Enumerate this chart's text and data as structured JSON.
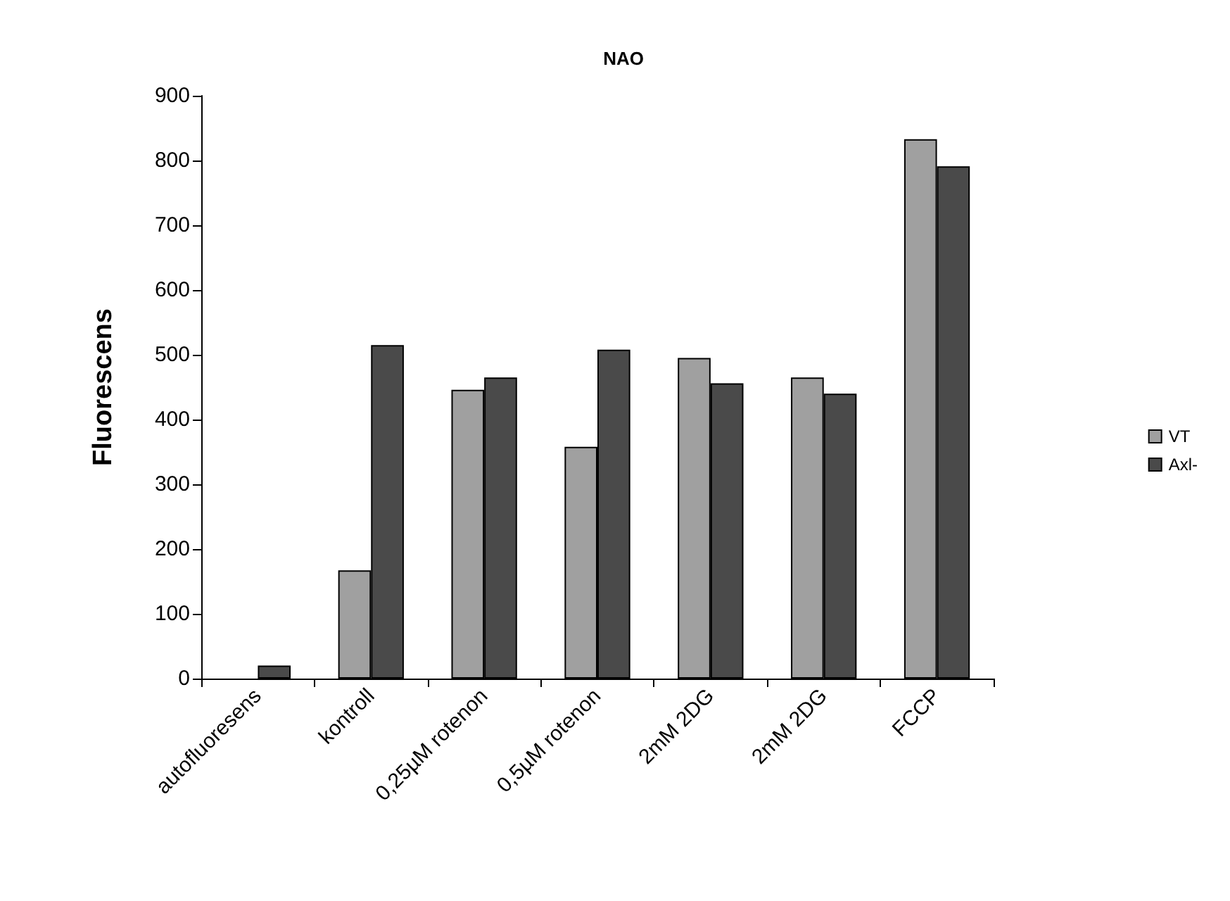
{
  "chart_data": {
    "type": "bar",
    "title": "NAO",
    "ylabel": "Fluorescens",
    "categories": [
      "autofluoresens",
      "kontroll",
      "0,25µM rotenon",
      "0,5µM rotenon",
      "2mM 2DG",
      "2mM 2DG",
      "FCCP"
    ],
    "series": [
      {
        "name": "VT",
        "color": "#a0a0a0",
        "values": [
          null,
          167,
          446,
          358,
          495,
          465,
          833
        ]
      },
      {
        "name": "Axl-",
        "color": "#4a4a4a",
        "values": [
          20,
          515,
          465,
          508,
          456,
          440,
          791
        ]
      }
    ],
    "ylim": [
      0,
      900
    ],
    "yticks": [
      0,
      100,
      200,
      300,
      400,
      500,
      600,
      700,
      800,
      900
    ],
    "grid": false,
    "legend": "right"
  }
}
